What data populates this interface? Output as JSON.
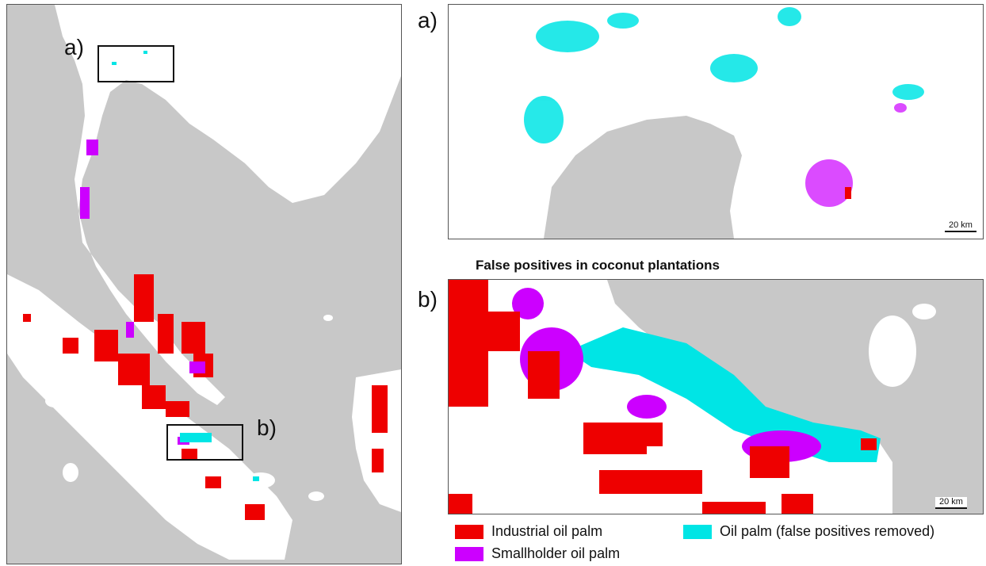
{
  "overview": {
    "box_a_label": "a)",
    "box_b_label": "b)"
  },
  "panel_a": {
    "label": "a)",
    "scale": "20 km"
  },
  "panel_b": {
    "title": "False positives in coconut plantations",
    "label": "b)",
    "scale": "20 km"
  },
  "legend": {
    "items": [
      {
        "label": "Industrial oil palm",
        "color": "#ee0000"
      },
      {
        "label": "Oil palm (false positives removed)",
        "color": "#00e5e5"
      },
      {
        "label": "Smallholder oil palm",
        "color": "#cc00ff"
      }
    ]
  },
  "colors": {
    "sea": "#c8c8c8",
    "land": "#ffffff",
    "industrial": "#ee0000",
    "smallholder": "#cc00ff",
    "false_positive": "#00e5e5"
  }
}
